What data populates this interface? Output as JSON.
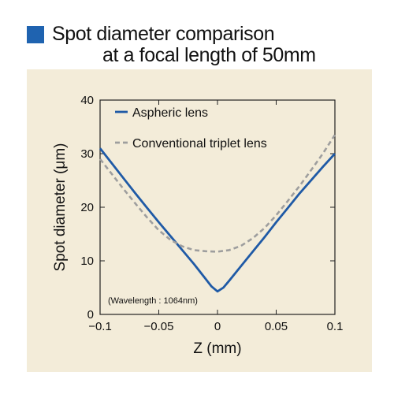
{
  "title": {
    "line1": "Spot diameter comparison",
    "line2": "at a focal length of 50mm",
    "marker_color": "#1f63b0"
  },
  "chart_data": {
    "type": "line",
    "xlabel": "Z (mm)",
    "ylabel": "Spot diameter (μm)",
    "xlim": [
      -0.1,
      0.1
    ],
    "ylim": [
      0,
      40
    ],
    "x_ticks": [
      -0.1,
      -0.05,
      0,
      0.05,
      0.1
    ],
    "x_tick_labels": [
      "−0.1",
      "−0.05",
      "0",
      "0.05",
      "0.1"
    ],
    "y_ticks": [
      0,
      10,
      20,
      30,
      40
    ],
    "y_tick_labels": [
      "0",
      "10",
      "20",
      "30",
      "40"
    ],
    "grid": false,
    "legend_position": "top-left",
    "annotation": "(Wavelength : 1064nm)",
    "series": [
      {
        "name": "Aspheric lens",
        "color": "#1f5aa6",
        "style": "solid",
        "x": [
          -0.1,
          -0.09,
          -0.08,
          -0.07,
          -0.06,
          -0.05,
          -0.04,
          -0.03,
          -0.02,
          -0.01,
          -0.005,
          0,
          0.005,
          0.01,
          0.02,
          0.03,
          0.04,
          0.05,
          0.06,
          0.07,
          0.08,
          0.09,
          0.1
        ],
        "values": [
          31,
          28.2,
          25.4,
          22.6,
          19.9,
          17.2,
          14.6,
          12.0,
          9.4,
          6.6,
          5.2,
          4.3,
          5.0,
          6.3,
          9.0,
          11.7,
          14.4,
          17.2,
          19.9,
          22.6,
          25.1,
          27.6,
          30.0
        ]
      },
      {
        "name": "Conventional triplet lens",
        "color": "#9e9e9e",
        "style": "dashed",
        "x": [
          -0.1,
          -0.09,
          -0.08,
          -0.07,
          -0.06,
          -0.05,
          -0.04,
          -0.03,
          -0.02,
          -0.01,
          0,
          0.01,
          0.02,
          0.03,
          0.04,
          0.05,
          0.06,
          0.07,
          0.08,
          0.09,
          0.1
        ],
        "values": [
          29,
          26.2,
          23.4,
          20.7,
          18.1,
          15.7,
          13.9,
          12.7,
          12.0,
          11.8,
          11.7,
          12.0,
          12.8,
          14.2,
          16.1,
          18.5,
          21.2,
          24.0,
          27.0,
          30.1,
          33.5
        ]
      }
    ]
  }
}
